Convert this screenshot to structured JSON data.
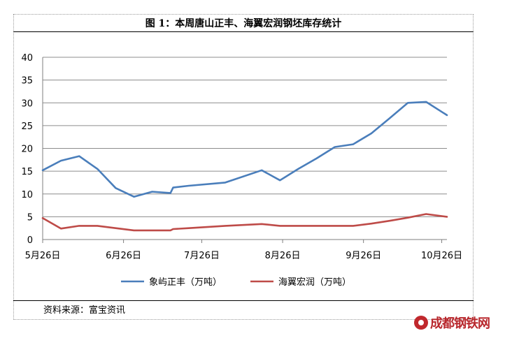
{
  "chart_data": {
    "type": "line",
    "title": "图 1：本周唐山正丰、海翼宏润钢坯库存统计",
    "xlabel": "",
    "ylabel": "",
    "ylim": [
      0,
      40
    ],
    "yticks": [
      0,
      5,
      10,
      15,
      20,
      25,
      30,
      35,
      40
    ],
    "xlim": [
      "2017-05-26",
      "2017-10-28"
    ],
    "xtick_dates": [
      "2017-05-26",
      "2017-06-26",
      "2017-07-26",
      "2017-08-26",
      "2017-09-26",
      "2017-10-26"
    ],
    "xtick_labels": [
      "5月26日",
      "6月26日",
      "7月26日",
      "8月26日",
      "9月26日",
      "10月26日"
    ],
    "grid": "horizontal",
    "legend_position": "bottom",
    "series": [
      {
        "name": "象屿正丰（万吨）",
        "color": "#4a7ebb",
        "points": [
          [
            "2017-05-26",
            15.2
          ],
          [
            "2017-06-02",
            17.3
          ],
          [
            "2017-06-09",
            18.3
          ],
          [
            "2017-06-16",
            15.5
          ],
          [
            "2017-06-23",
            11.3
          ],
          [
            "2017-06-30",
            9.4
          ],
          [
            "2017-07-07",
            10.5
          ],
          [
            "2017-07-14",
            10.2
          ],
          [
            "2017-07-15",
            11.4
          ],
          [
            "2017-07-21",
            11.8
          ],
          [
            "2017-08-04",
            12.5
          ],
          [
            "2017-08-18",
            15.2
          ],
          [
            "2017-08-25",
            13.0
          ],
          [
            "2017-09-01",
            15.5
          ],
          [
            "2017-09-08",
            17.8
          ],
          [
            "2017-09-15",
            20.3
          ],
          [
            "2017-09-22",
            20.9
          ],
          [
            "2017-09-29",
            23.3
          ],
          [
            "2017-10-06",
            26.6
          ],
          [
            "2017-10-13",
            30.0
          ],
          [
            "2017-10-20",
            30.2
          ],
          [
            "2017-10-28",
            27.3
          ]
        ]
      },
      {
        "name": "海翼宏润（万吨）",
        "color": "#be4b48",
        "points": [
          [
            "2017-05-26",
            4.7
          ],
          [
            "2017-06-02",
            2.4
          ],
          [
            "2017-06-09",
            3.0
          ],
          [
            "2017-06-16",
            3.0
          ],
          [
            "2017-06-23",
            2.5
          ],
          [
            "2017-06-30",
            2.0
          ],
          [
            "2017-07-07",
            2.0
          ],
          [
            "2017-07-14",
            2.0
          ],
          [
            "2017-07-15",
            2.3
          ],
          [
            "2017-07-21",
            2.5
          ],
          [
            "2017-08-04",
            3.0
          ],
          [
            "2017-08-18",
            3.4
          ],
          [
            "2017-08-25",
            3.0
          ],
          [
            "2017-09-01",
            3.0
          ],
          [
            "2017-09-08",
            3.0
          ],
          [
            "2017-09-15",
            3.0
          ],
          [
            "2017-09-22",
            3.0
          ],
          [
            "2017-09-29",
            3.5
          ],
          [
            "2017-10-06",
            4.1
          ],
          [
            "2017-10-13",
            4.8
          ],
          [
            "2017-10-20",
            5.6
          ],
          [
            "2017-10-28",
            5.0
          ]
        ]
      }
    ]
  },
  "source": "资料来源：富宝资讯",
  "watermark": {
    "text": "成都钢铁网",
    "color": "#b8272c"
  }
}
